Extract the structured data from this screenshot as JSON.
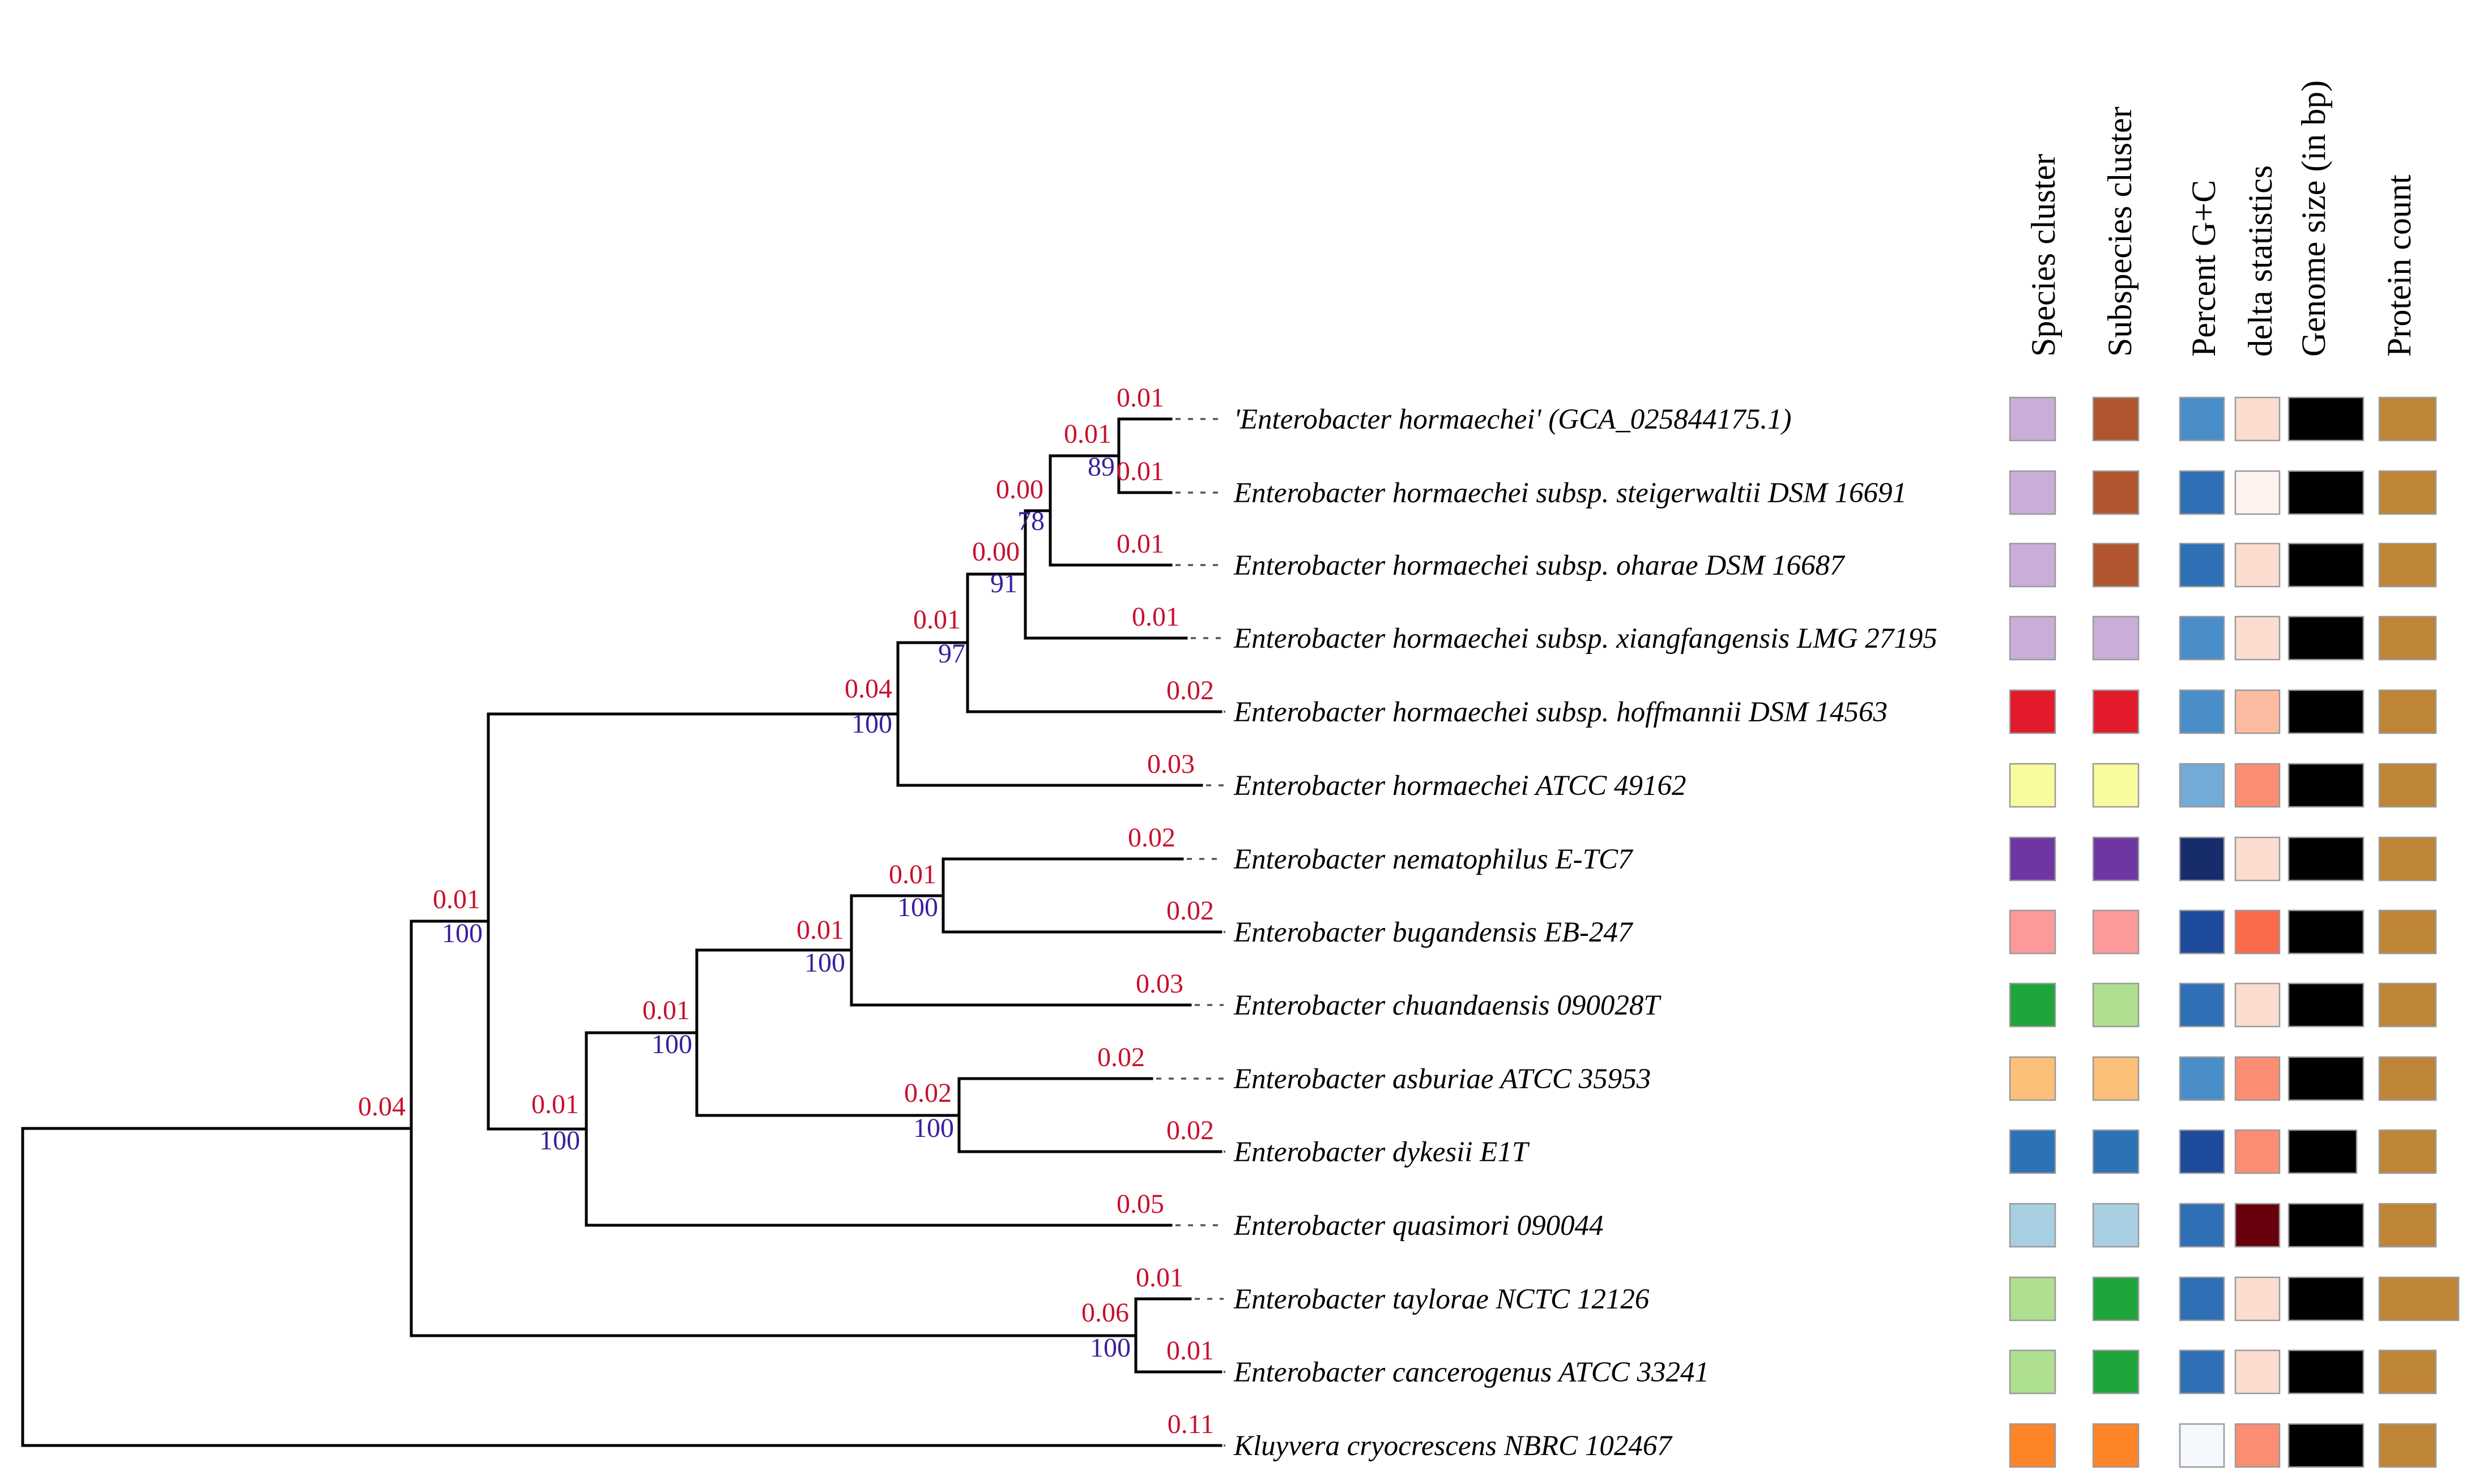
{
  "headers": [
    "Species cluster",
    "Subspecies cluster",
    "Percent G+C",
    "delta statistics",
    "Genome size (in bp)",
    "Protein count"
  ],
  "taxa": [
    {
      "label": "'Enterobacter hormaechei' (GCA_025844175.1)",
      "blen": "0.01",
      "species": "#c9aed9",
      "subspecies": "#b0552d",
      "gc": "#4a8ec9",
      "delta": "#fddcd0",
      "gsize": "#000000",
      "prot": "#bf8536"
    },
    {
      "label": "Enterobacter hormaechei subsp. steigerwaltii DSM 16691",
      "blen": "0.01",
      "species": "#c9aed9",
      "subspecies": "#b0552d",
      "gc": "#2f6fb5",
      "delta": "#fff3ef",
      "gsize": "#000000",
      "prot": "#bf8536"
    },
    {
      "label": "Enterobacter hormaechei subsp. oharae DSM 16687",
      "blen": "0.01",
      "species": "#c9aed9",
      "subspecies": "#b0552d",
      "gc": "#2f6fb5",
      "delta": "#fddcd0",
      "gsize": "#000000",
      "prot": "#bf8536"
    },
    {
      "label": "Enterobacter hormaechei subsp. xiangfangensis LMG 27195",
      "blen": "0.01",
      "species": "#c9aed9",
      "subspecies": "#c9aed9",
      "gc": "#4a8ec9",
      "delta": "#fddcd0",
      "gsize": "#000000",
      "prot": "#bf8536"
    },
    {
      "label": "Enterobacter hormaechei subsp. hoffmannii DSM 14563",
      "blen": "0.02",
      "species": "#e31a2c",
      "subspecies": "#e31a2c",
      "gc": "#4a8ec9",
      "delta": "#fcbba1",
      "gsize": "#000000",
      "prot": "#bf8536"
    },
    {
      "label": "Enterobacter hormaechei ATCC 49162",
      "blen": "0.03",
      "species": "#fafa9e",
      "subspecies": "#fafa9e",
      "gc": "#73aad6",
      "delta": "#fb8e72",
      "gsize": "#000000",
      "prot": "#bf8536"
    },
    {
      "label": "Enterobacter nematophilus E-TC7",
      "blen": "0.02",
      "species": "#6e36a3",
      "subspecies": "#6e36a3",
      "gc": "#172d6b",
      "delta": "#fddcd0",
      "gsize": "#000000",
      "prot": "#bf8536"
    },
    {
      "label": "Enterobacter bugandensis EB-247",
      "blen": "0.02",
      "species": "#fb9a99",
      "subspecies": "#fb9a99",
      "gc": "#1e4a9c",
      "delta": "#fb6a4a",
      "gsize": "#000000",
      "prot": "#bf8536"
    },
    {
      "label": "Enterobacter chuandaensis 090028T",
      "blen": "0.03",
      "species": "#1ea63c",
      "subspecies": "#aee08f",
      "gc": "#2f6fb5",
      "delta": "#fddcd0",
      "gsize": "#000000",
      "prot": "#bf8536"
    },
    {
      "label": "Enterobacter asburiae ATCC 35953",
      "blen": "0.02",
      "species": "#fdc079",
      "subspecies": "#fdc079",
      "gc": "#4a8ec9",
      "delta": "#fb8e72",
      "gsize": "#000000",
      "prot": "#bf8536"
    },
    {
      "label": "Enterobacter dykesii E1T",
      "blen": "0.02",
      "species": "#2b73b5",
      "subspecies": "#2b73b5",
      "gc": "#1e4a9c",
      "delta": "#fb8e72",
      "gsize": "#000000",
      "prot": "#bf8536"
    },
    {
      "label": "Enterobacter quasimori 090044",
      "blen": "0.05",
      "species": "#a8cfe2",
      "subspecies": "#a8cfe2",
      "gc": "#2f6fb5",
      "delta": "#67000d",
      "gsize": "#000000",
      "prot": "#bf8536"
    },
    {
      "label": "Enterobacter taylorae NCTC 12126",
      "blen": "0.01",
      "species": "#aee08f",
      "subspecies": "#1ea63c",
      "gc": "#2f6fb5",
      "delta": "#fddcd0",
      "gsize": "#000000",
      "prot": "#bf8536"
    },
    {
      "label": "Enterobacter cancerogenus ATCC 33241",
      "blen": "0.01",
      "species": "#aee08f",
      "subspecies": "#1ea63c",
      "gc": "#2f6fb5",
      "delta": "#fddcd0",
      "gsize": "#000000",
      "prot": "#bf8536"
    },
    {
      "label": "Kluyvera cryocrescens NBRC 102467",
      "blen": "0.11",
      "species": "#fd8527",
      "subspecies": "#fd8527",
      "gc": "#f5f8fd",
      "delta": "#fb8e72",
      "gsize": "#000000",
      "prot": "#bf8536"
    }
  ],
  "internal_nodes": [
    {
      "id": "n01",
      "blen": "0.01",
      "boot": "89"
    },
    {
      "id": "n012",
      "blen": "0.00",
      "boot": "78"
    },
    {
      "id": "n0123",
      "blen": "0.00",
      "boot": "91"
    },
    {
      "id": "n01234",
      "blen": "0.01",
      "boot": "97"
    },
    {
      "id": "n012345",
      "blen": "0.04",
      "boot": "100"
    },
    {
      "id": "n67",
      "blen": "0.01",
      "boot": "100"
    },
    {
      "id": "n678",
      "blen": "0.01",
      "boot": "100"
    },
    {
      "id": "n910",
      "blen": "0.02",
      "boot": "100"
    },
    {
      "id": "n678910",
      "blen": "0.01",
      "boot": "100"
    },
    {
      "id": "n6to11",
      "blen": "0.01",
      "boot": "100"
    },
    {
      "id": "n0to11",
      "blen": "0.01",
      "boot": "100"
    },
    {
      "id": "n1213",
      "blen": "0.06",
      "boot": "100"
    },
    {
      "id": "n0to13",
      "blen": "0.04",
      "boot": ""
    }
  ]
}
